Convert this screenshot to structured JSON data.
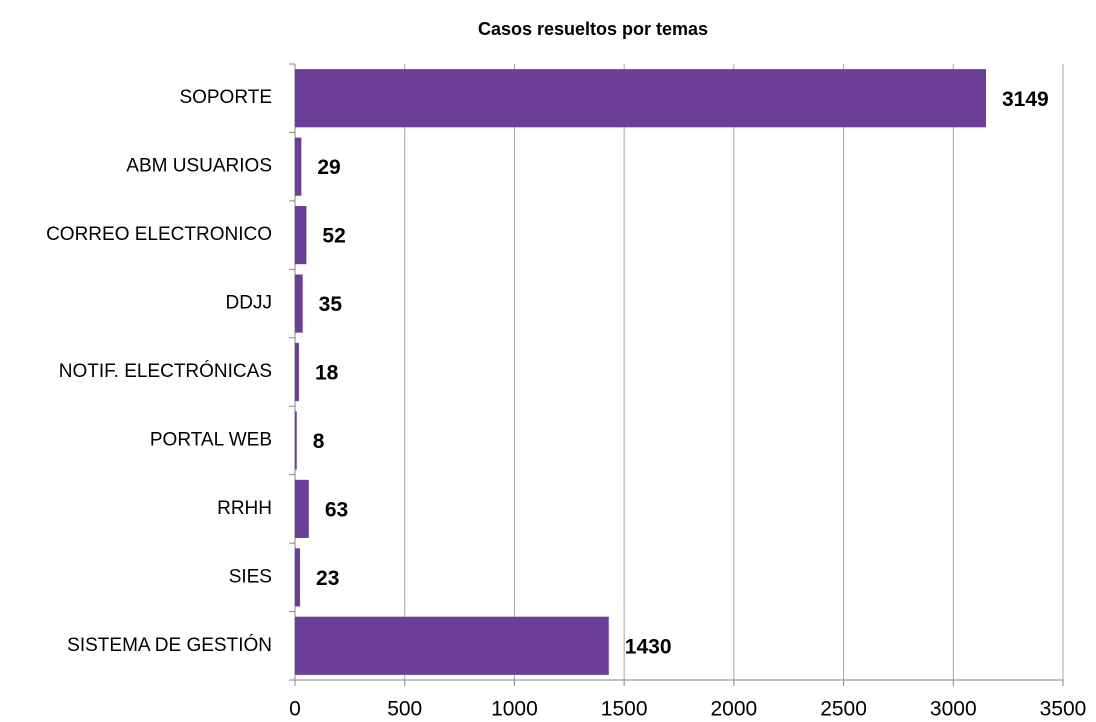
{
  "chart_data": {
    "type": "bar",
    "orientation": "horizontal",
    "title": "Casos resueltos por temas",
    "categories": [
      "SOPORTE",
      "ABM USUARIOS",
      "CORREO ELECTRONICO",
      "DDJJ",
      "NOTIF. ELECTRÓNICAS",
      "PORTAL WEB",
      "RRHH",
      "SIES",
      "SISTEMA DE GESTIÓN"
    ],
    "values": [
      3149,
      29,
      52,
      35,
      18,
      8,
      63,
      23,
      1430
    ],
    "color": "#6b3f98",
    "xlim": [
      0,
      3500
    ],
    "xticks": [
      0,
      500,
      1000,
      1500,
      2000,
      2500,
      3000,
      3500
    ],
    "grid": true
  }
}
